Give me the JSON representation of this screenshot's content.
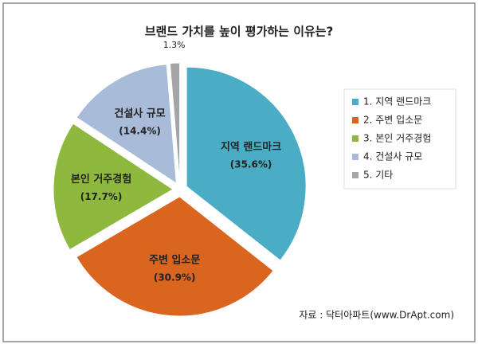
{
  "chart_data": {
    "type": "pie",
    "title": "브랜드 가치를 높이 평가하는 이유는?",
    "categories": [
      "1. 지역 랜드마크",
      "2. 주변 입소문",
      "3. 본인 거주경험",
      "4. 건설사 규모",
      "5. 기타"
    ],
    "slice_labels": [
      "지역 랜드마크",
      "주변 입소문",
      "본인 거주경험",
      "건설사 규모",
      null
    ],
    "values": [
      35.6,
      30.9,
      17.7,
      14.4,
      1.3
    ],
    "value_labels": [
      "(35.6%)",
      "(30.9%)",
      "(17.7%)",
      "(14.4%)",
      "1.3%"
    ],
    "colors": [
      "#4bacc6",
      "#d9651f",
      "#8fb83f",
      "#a8bcd9",
      "#a5a5a5"
    ],
    "legend": "right",
    "source": "자료 : 닥터아파트(www.DrApt.com)"
  }
}
